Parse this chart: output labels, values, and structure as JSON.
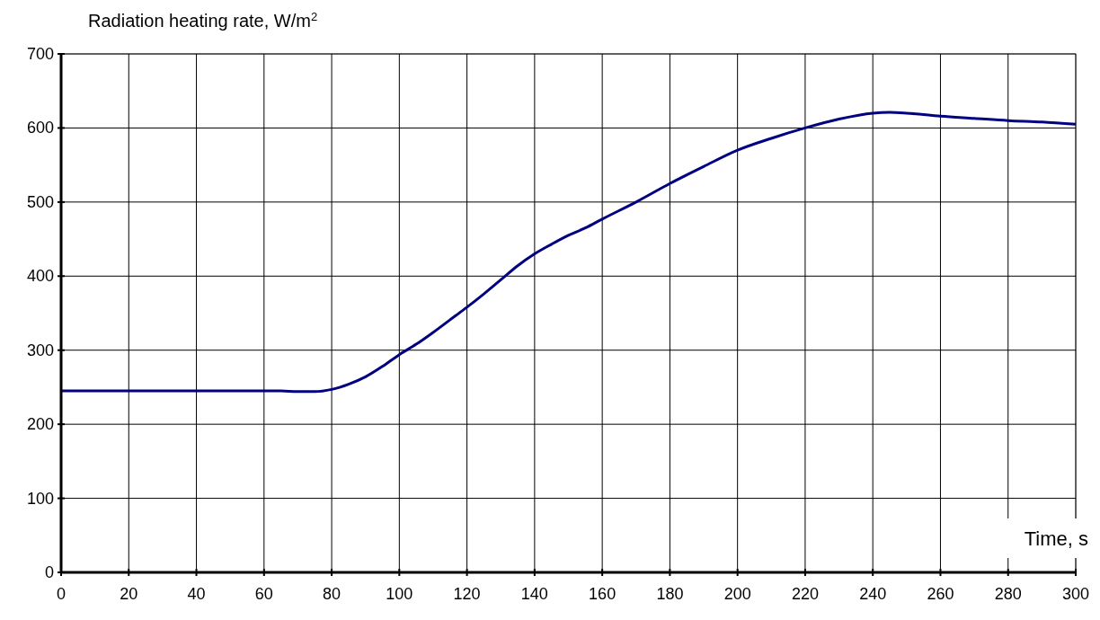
{
  "chart_data": {
    "type": "line",
    "ylabel": "Radiation heating rate,  W/m$^{2}$",
    "xlabel": "Time,  s",
    "grid": true,
    "xlim": [
      0,
      300
    ],
    "ylim": [
      0,
      700
    ],
    "xticks": [
      0,
      20,
      40,
      60,
      80,
      100,
      120,
      140,
      160,
      180,
      200,
      220,
      240,
      260,
      280,
      300
    ],
    "yticks": [
      0,
      100,
      200,
      300,
      400,
      500,
      600,
      700
    ],
    "series": [
      {
        "color": "#000080",
        "x": [
          0,
          10,
          20,
          30,
          40,
          50,
          60,
          65,
          70,
          75,
          80,
          85,
          90,
          95,
          100,
          105,
          110,
          115,
          120,
          125,
          130,
          135,
          140,
          145,
          150,
          155,
          160,
          170,
          180,
          190,
          200,
          210,
          220,
          230,
          240,
          245,
          250,
          260,
          270,
          280,
          290,
          300
        ],
        "values": [
          245,
          245,
          245,
          245,
          245,
          245,
          245,
          245,
          244,
          244,
          247,
          254,
          264,
          278,
          294,
          308,
          324,
          341,
          358,
          376,
          395,
          414,
          430,
          443,
          455,
          465,
          477,
          500,
          525,
          548,
          570,
          586,
          600,
          612,
          620,
          621,
          620,
          616,
          613,
          610,
          608,
          605
        ]
      }
    ]
  }
}
